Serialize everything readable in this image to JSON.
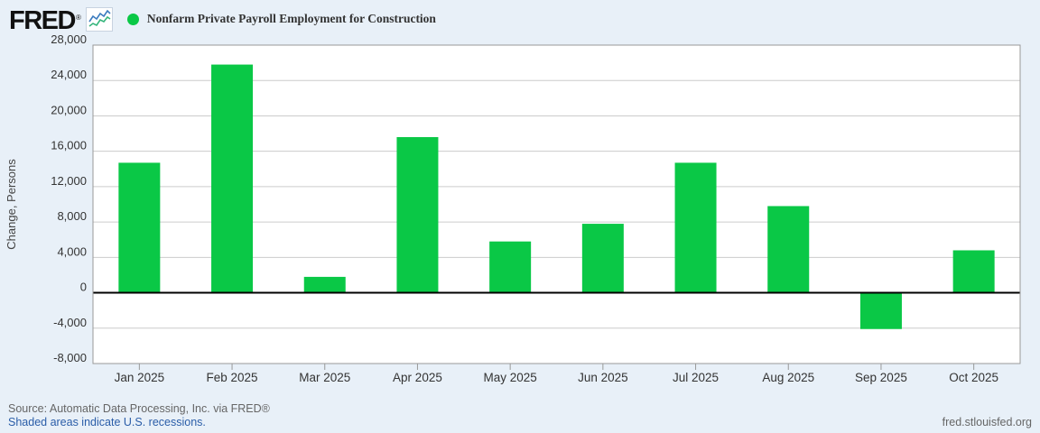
{
  "header": {
    "logo": "FRED",
    "registered_mark": "®",
    "legend": {
      "marker_color": "#0ac846",
      "series_label": "Nonfarm Private Payroll Employment for Construction"
    }
  },
  "chart_data": {
    "type": "bar",
    "title": "Nonfarm Private Payroll Employment for Construction",
    "xlabel": "",
    "ylabel": "Change, Persons",
    "categories": [
      "Jan 2025",
      "Feb 2025",
      "Mar 2025",
      "Apr 2025",
      "May 2025",
      "Jun 2025",
      "Jul 2025",
      "Aug 2025",
      "Sep 2025",
      "Oct 2025"
    ],
    "values": [
      14700,
      25800,
      1800,
      17600,
      5800,
      7800,
      14700,
      9800,
      -4100,
      4800
    ],
    "ylim": [
      -8000,
      28000
    ],
    "yticks": [
      28000,
      24000,
      20000,
      16000,
      12000,
      8000,
      4000,
      0,
      -4000,
      -8000
    ],
    "bar_color": "#0ac846",
    "grid": true,
    "zero_line": true,
    "legend_position": "top-left",
    "plot_background": "#ffffff"
  },
  "footer": {
    "source_note": "Source: Automatic Data Processing, Inc. via FRED®",
    "recession_note": "Shaded areas indicate U.S. recessions.",
    "site_label": "fred.stlouisfed.org"
  },
  "colors": {
    "page_background": "#e8f0f8",
    "grid_line": "#cccccc",
    "plot_border": "#999999",
    "zero_line": "#000000",
    "axis_text": "#333333",
    "axis_title_text": "#444444",
    "link_blue": "#2a5da8",
    "muted_text": "#666666"
  }
}
